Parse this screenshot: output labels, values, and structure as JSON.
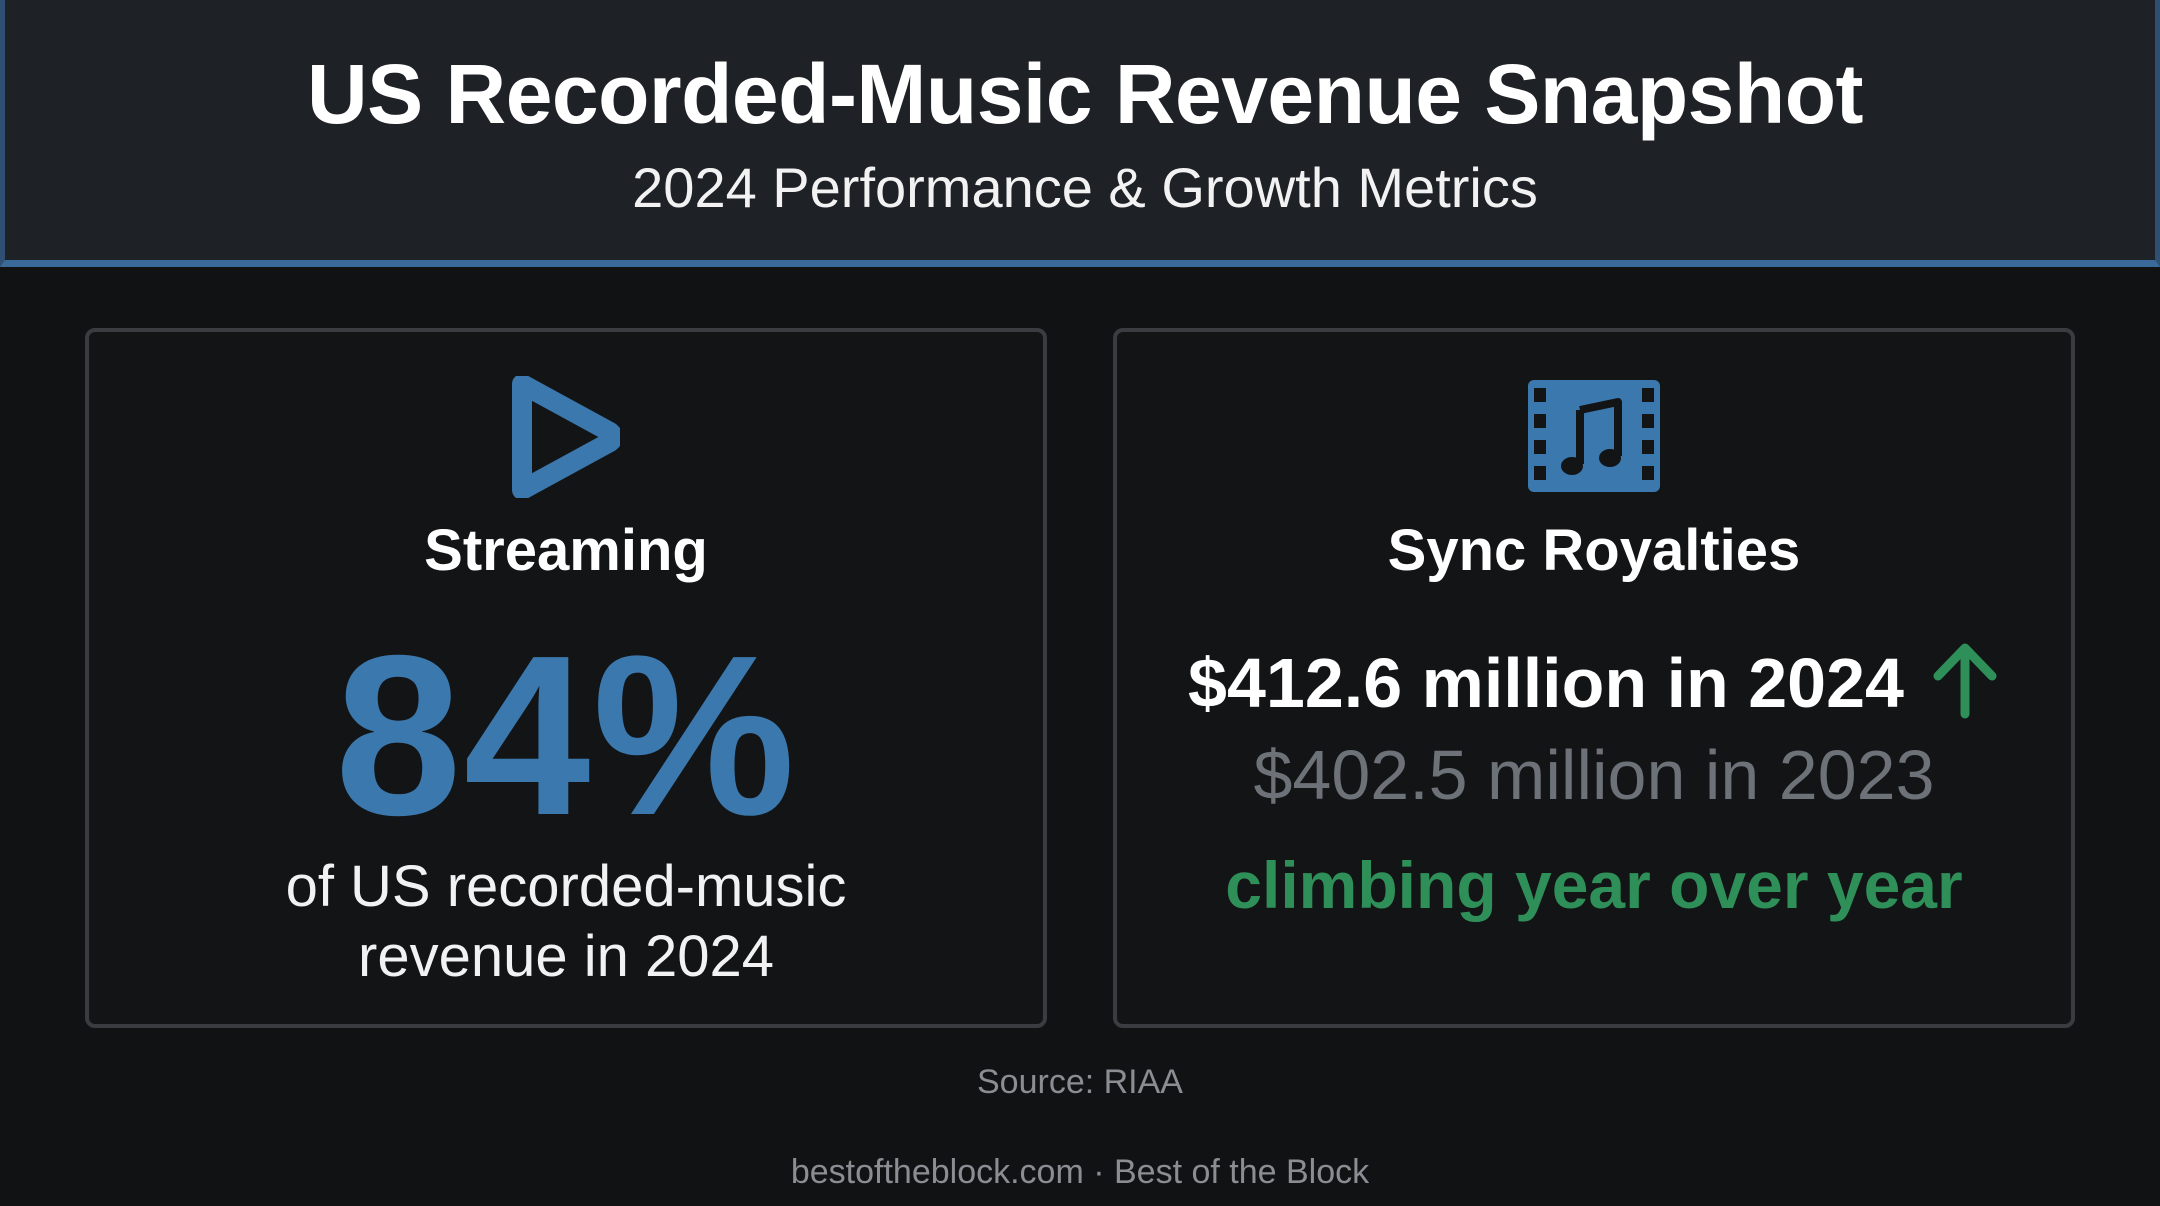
{
  "header": {
    "title": "US Recorded-Music Revenue Snapshot",
    "subtitle": "2024 Performance & Growth Metrics"
  },
  "streaming_card": {
    "icon": "play-icon",
    "label": "Streaming",
    "value": "84%",
    "description_line1": "of US recorded-music",
    "description_line2": "revenue in 2024"
  },
  "sync_card": {
    "icon": "film-music-icon",
    "label": "Sync Royalties",
    "value_2024": "$412.6 million in 2024",
    "trend_icon": "arrow-up-icon",
    "value_2023": "$402.5 million in 2023",
    "trend_text": "climbing year over year"
  },
  "source": "Source: RIAA",
  "footer": "bestoftheblock.com · Best of the Block",
  "colors": {
    "background": "#111213",
    "header_bg": "#1e2126",
    "accent_blue": "#3b78ad",
    "accent_green": "#2f8f58",
    "muted_text": "#6d7178"
  }
}
